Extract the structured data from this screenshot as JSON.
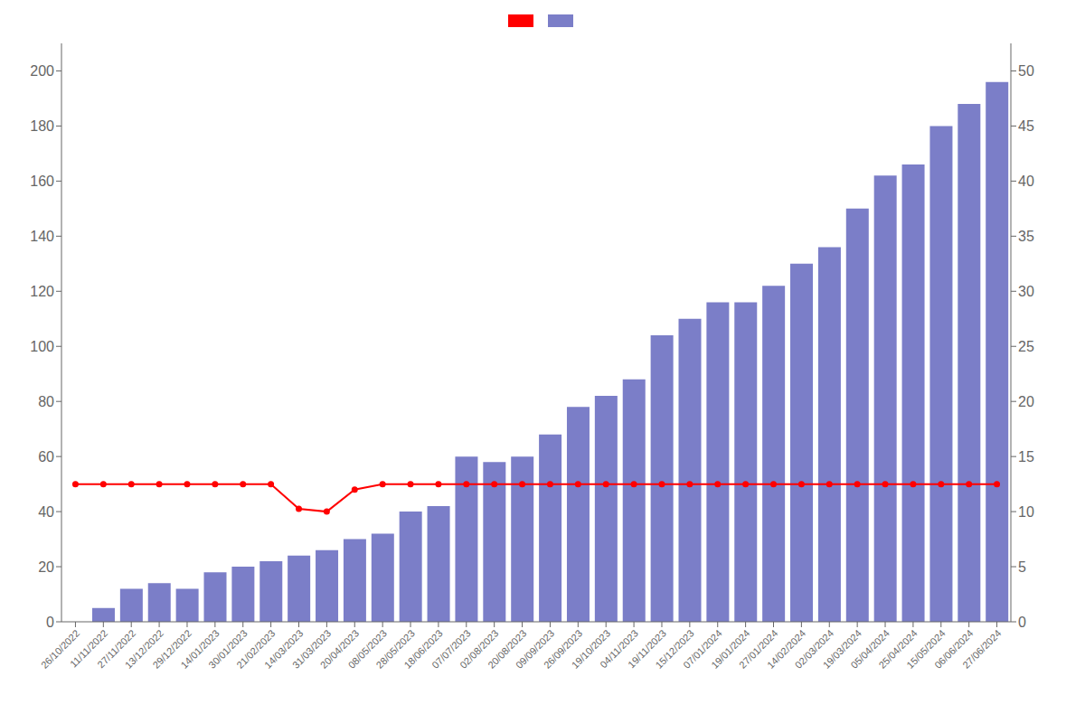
{
  "chart_data": {
    "type": "bar",
    "categories": [
      "26/10/2022",
      "11/11/2022",
      "27/11/2022",
      "13/12/2022",
      "29/12/2022",
      "14/01/2023",
      "30/01/2023",
      "21/02/2023",
      "14/03/2023",
      "31/03/2023",
      "20/04/2023",
      "08/05/2023",
      "28/05/2023",
      "18/06/2023",
      "07/07/2023",
      "02/08/2023",
      "20/08/2023",
      "09/09/2023",
      "26/09/2023",
      "19/10/2023",
      "04/11/2023",
      "19/11/2023",
      "15/12/2023",
      "07/01/2024",
      "19/01/2024",
      "27/01/2024",
      "14/02/2024",
      "02/03/2024",
      "19/03/2024",
      "05/04/2024",
      "25/04/2024",
      "15/05/2024",
      "06/06/2024",
      "27/06/2024"
    ],
    "series": [
      {
        "type": "line",
        "color": "#FF0000",
        "marker": "o",
        "values": [
          49.99,
          49.99,
          49.99,
          49.99,
          49.99,
          49.99,
          49.99,
          49.99,
          41.0,
          40.0,
          48.0,
          49.99,
          49.99,
          49.99,
          49.99,
          49.99,
          49.99,
          49.99,
          49.99,
          49.99,
          49.99,
          49.99,
          49.99,
          49.99,
          49.99,
          49.99,
          49.99,
          49.99,
          49.99,
          49.99,
          49.99,
          49.99,
          49.99,
          49.99
        ]
      },
      {
        "type": "bar",
        "color": "#7B7EC8",
        "values": [
          0,
          5,
          12,
          14,
          12,
          18,
          20,
          22,
          24,
          26,
          30,
          32,
          40,
          42,
          60,
          58,
          60,
          68,
          78,
          82,
          88,
          104,
          110,
          116,
          116,
          122,
          130,
          136,
          150,
          162,
          166,
          180,
          188,
          196
        ]
      }
    ],
    "ylim": [
      0,
      210
    ],
    "yticks": [
      0,
      20,
      40,
      60,
      80,
      100,
      120,
      140,
      160,
      180,
      200
    ],
    "y2lim": [
      0,
      52.5
    ],
    "y2ticks": [
      0,
      5,
      10,
      15,
      20,
      25,
      30,
      35,
      40,
      45,
      50
    ],
    "grid": false,
    "legend": "top"
  }
}
